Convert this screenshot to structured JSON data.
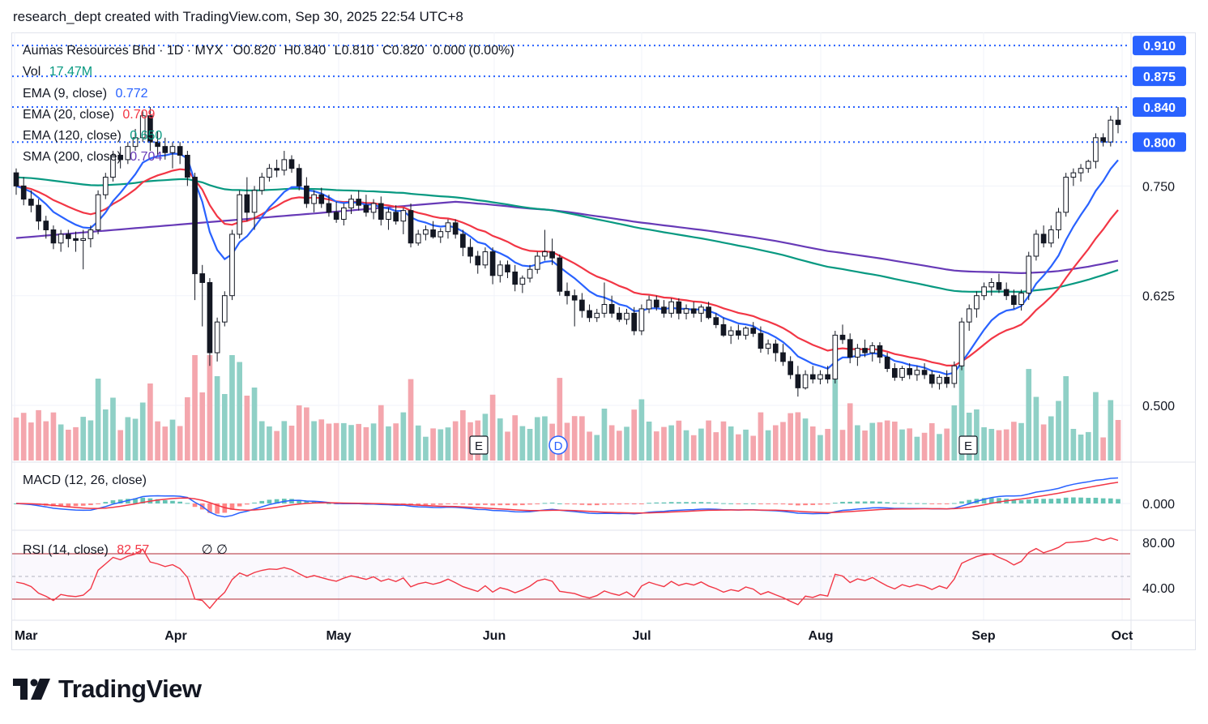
{
  "header": {
    "caption": "research_dept created with TradingView.com, Sep 30, 2025 22:54 UTC+8"
  },
  "legend": {
    "symbol": "Aumas Resources Bhd · 1D · MYX",
    "o_label": "O",
    "o_value": "0.820",
    "h_label": "H",
    "h_value": "0.840",
    "l_label": "L",
    "l_value": "0.810",
    "c_label": "C",
    "c_value": "0.820",
    "change": "0.000 (0.00%)",
    "vol_label": "Vol",
    "vol_value": "17.47M",
    "ema9_label": "EMA (9, close)",
    "ema9_value": "0.772",
    "ema20_label": "EMA (20, close)",
    "ema20_value": "0.709",
    "ema120_label": "EMA (120, close)",
    "ema120_value": "0.650",
    "sma200_label": "SMA (200, close)",
    "sma200_value": "0.704",
    "macd_label": "MACD (12, 26, close)",
    "rsi_label": "RSI (14, close)",
    "rsi_value": "82.57",
    "rsi_extra": "∅ ∅"
  },
  "price_tags": [
    {
      "value": "0.910",
      "color": "#2962ff"
    },
    {
      "value": "0.875",
      "color": "#2962ff"
    },
    {
      "value": "0.840",
      "color": "#2962ff"
    },
    {
      "value": "0.800",
      "color": "#2962ff"
    }
  ],
  "event_markers": [
    {
      "label": "E",
      "month": "May",
      "day": 30
    },
    {
      "label": "D",
      "month": "Jun",
      "day": 17
    },
    {
      "label": "E",
      "month": "Aug",
      "day": 28
    }
  ],
  "brand": {
    "name": "TradingView"
  },
  "colors": {
    "up": "#ffffff",
    "down": "#131722",
    "ema9": "#2962ff",
    "ema20": "#f23645",
    "ema120": "#089981",
    "sma200": "#673ab7",
    "vol_up": "#8fd0c6",
    "vol_down": "#f4a6ad",
    "macd_line": "#2962ff",
    "signal_line": "#f23645",
    "rsi_line": "#f23645",
    "dotted": "#2962ff"
  },
  "chart_data": {
    "type": "candlestick",
    "symbol": "Aumas Resources Bhd",
    "timeframe": "1D",
    "x_months": [
      "Mar",
      "Apr",
      "May",
      "Jun",
      "Jul",
      "Aug",
      "Sep",
      "Oct"
    ],
    "price_ticks": [
      "0.500",
      "0.625",
      "0.750"
    ],
    "price_range": [
      0.46,
      0.92
    ],
    "reference_lines": [
      0.91,
      0.875,
      0.84,
      0.8
    ],
    "macd_ticks": [
      "0.000"
    ],
    "rsi_ticks": [
      "80.00",
      "40.00"
    ],
    "rsi_bands": [
      70,
      50,
      30
    ],
    "candles_ohlc": [
      [
        0.765,
        0.77,
        0.74,
        0.75
      ],
      [
        0.75,
        0.76,
        0.728,
        0.735
      ],
      [
        0.735,
        0.745,
        0.72,
        0.728
      ],
      [
        0.728,
        0.735,
        0.7,
        0.71
      ],
      [
        0.71,
        0.716,
        0.69,
        0.7
      ],
      [
        0.7,
        0.705,
        0.678,
        0.685
      ],
      [
        0.685,
        0.7,
        0.675,
        0.695
      ],
      [
        0.695,
        0.7,
        0.68,
        0.69
      ],
      [
        0.69,
        0.698,
        0.675,
        0.688
      ],
      [
        0.688,
        0.7,
        0.655,
        0.69
      ],
      [
        0.69,
        0.705,
        0.68,
        0.7
      ],
      [
        0.7,
        0.745,
        0.695,
        0.74
      ],
      [
        0.74,
        0.765,
        0.735,
        0.76
      ],
      [
        0.76,
        0.79,
        0.755,
        0.785
      ],
      [
        0.785,
        0.795,
        0.77,
        0.78
      ],
      [
        0.78,
        0.8,
        0.775,
        0.795
      ],
      [
        0.795,
        0.815,
        0.79,
        0.805
      ],
      [
        0.805,
        0.835,
        0.8,
        0.83
      ],
      [
        0.83,
        0.84,
        0.79,
        0.8
      ],
      [
        0.8,
        0.812,
        0.785,
        0.795
      ],
      [
        0.795,
        0.805,
        0.78,
        0.788
      ],
      [
        0.788,
        0.8,
        0.77,
        0.795
      ],
      [
        0.795,
        0.8,
        0.775,
        0.785
      ],
      [
        0.785,
        0.79,
        0.75,
        0.76
      ],
      [
        0.76,
        0.765,
        0.62,
        0.65
      ],
      [
        0.65,
        0.66,
        0.59,
        0.64
      ],
      [
        0.64,
        0.645,
        0.545,
        0.56
      ],
      [
        0.56,
        0.6,
        0.55,
        0.595
      ],
      [
        0.595,
        0.63,
        0.59,
        0.625
      ],
      [
        0.625,
        0.7,
        0.62,
        0.695
      ],
      [
        0.695,
        0.745,
        0.69,
        0.74
      ],
      [
        0.74,
        0.76,
        0.71,
        0.72
      ],
      [
        0.72,
        0.75,
        0.7,
        0.745
      ],
      [
        0.745,
        0.765,
        0.74,
        0.76
      ],
      [
        0.76,
        0.775,
        0.755,
        0.77
      ],
      [
        0.77,
        0.78,
        0.76,
        0.768
      ],
      [
        0.768,
        0.79,
        0.762,
        0.78
      ],
      [
        0.78,
        0.785,
        0.765,
        0.77
      ],
      [
        0.77,
        0.775,
        0.745,
        0.75
      ],
      [
        0.75,
        0.76,
        0.725,
        0.73
      ],
      [
        0.73,
        0.745,
        0.72,
        0.74
      ],
      [
        0.74,
        0.748,
        0.725,
        0.73
      ],
      [
        0.73,
        0.74,
        0.715,
        0.72
      ],
      [
        0.72,
        0.732,
        0.708,
        0.712
      ],
      [
        0.712,
        0.73,
        0.705,
        0.725
      ],
      [
        0.725,
        0.74,
        0.718,
        0.735
      ],
      [
        0.735,
        0.745,
        0.722,
        0.728
      ],
      [
        0.728,
        0.74,
        0.715,
        0.72
      ],
      [
        0.72,
        0.735,
        0.712,
        0.73
      ],
      [
        0.73,
        0.738,
        0.705,
        0.712
      ],
      [
        0.712,
        0.725,
        0.7,
        0.72
      ],
      [
        0.72,
        0.728,
        0.706,
        0.71
      ],
      [
        0.71,
        0.725,
        0.695,
        0.722
      ],
      [
        0.722,
        0.73,
        0.68,
        0.685
      ],
      [
        0.685,
        0.7,
        0.682,
        0.695
      ],
      [
        0.695,
        0.705,
        0.688,
        0.7
      ],
      [
        0.7,
        0.71,
        0.69,
        0.692
      ],
      [
        0.692,
        0.702,
        0.685,
        0.698
      ],
      [
        0.698,
        0.712,
        0.69,
        0.708
      ],
      [
        0.708,
        0.712,
        0.69,
        0.695
      ],
      [
        0.695,
        0.7,
        0.67,
        0.68
      ],
      [
        0.68,
        0.69,
        0.662,
        0.67
      ],
      [
        0.67,
        0.676,
        0.65,
        0.66
      ],
      [
        0.66,
        0.68,
        0.656,
        0.675
      ],
      [
        0.675,
        0.68,
        0.638,
        0.648
      ],
      [
        0.648,
        0.665,
        0.64,
        0.66
      ],
      [
        0.66,
        0.665,
        0.645,
        0.652
      ],
      [
        0.652,
        0.66,
        0.63,
        0.638
      ],
      [
        0.638,
        0.648,
        0.628,
        0.645
      ],
      [
        0.645,
        0.66,
        0.64,
        0.655
      ],
      [
        0.655,
        0.675,
        0.65,
        0.67
      ],
      [
        0.67,
        0.7,
        0.665,
        0.675
      ],
      [
        0.675,
        0.69,
        0.66,
        0.668
      ],
      [
        0.668,
        0.672,
        0.625,
        0.63
      ],
      [
        0.63,
        0.64,
        0.615,
        0.625
      ],
      [
        0.625,
        0.632,
        0.59,
        0.62
      ],
      [
        0.62,
        0.628,
        0.6,
        0.608
      ],
      [
        0.608,
        0.615,
        0.595,
        0.6
      ],
      [
        0.6,
        0.61,
        0.595,
        0.605
      ],
      [
        0.605,
        0.64,
        0.6,
        0.615
      ],
      [
        0.615,
        0.625,
        0.6,
        0.605
      ],
      [
        0.605,
        0.612,
        0.595,
        0.598
      ],
      [
        0.598,
        0.61,
        0.592,
        0.605
      ],
      [
        0.605,
        0.612,
        0.58,
        0.585
      ],
      [
        0.585,
        0.615,
        0.58,
        0.61
      ],
      [
        0.61,
        0.625,
        0.605,
        0.62
      ],
      [
        0.62,
        0.625,
        0.608,
        0.612
      ],
      [
        0.612,
        0.62,
        0.6,
        0.605
      ],
      [
        0.605,
        0.622,
        0.6,
        0.618
      ],
      [
        0.618,
        0.622,
        0.598,
        0.605
      ],
      [
        0.605,
        0.615,
        0.598,
        0.61
      ],
      [
        0.61,
        0.618,
        0.6,
        0.605
      ],
      [
        0.605,
        0.615,
        0.595,
        0.612
      ],
      [
        0.612,
        0.618,
        0.598,
        0.6
      ],
      [
        0.6,
        0.605,
        0.588,
        0.592
      ],
      [
        0.592,
        0.6,
        0.578,
        0.58
      ],
      [
        0.58,
        0.59,
        0.57,
        0.585
      ],
      [
        0.585,
        0.592,
        0.575,
        0.58
      ],
      [
        0.58,
        0.59,
        0.575,
        0.588
      ],
      [
        0.588,
        0.595,
        0.578,
        0.582
      ],
      [
        0.582,
        0.59,
        0.56,
        0.565
      ],
      [
        0.565,
        0.575,
        0.558,
        0.57
      ],
      [
        0.57,
        0.575,
        0.55,
        0.56
      ],
      [
        0.56,
        0.57,
        0.545,
        0.55
      ],
      [
        0.55,
        0.556,
        0.53,
        0.535
      ],
      [
        0.535,
        0.545,
        0.51,
        0.52
      ],
      [
        0.52,
        0.54,
        0.518,
        0.535
      ],
      [
        0.535,
        0.545,
        0.525,
        0.53
      ],
      [
        0.53,
        0.54,
        0.524,
        0.535
      ],
      [
        0.535,
        0.545,
        0.525,
        0.53
      ],
      [
        0.53,
        0.585,
        0.525,
        0.58
      ],
      [
        0.58,
        0.592,
        0.57,
        0.575
      ],
      [
        0.575,
        0.582,
        0.548,
        0.555
      ],
      [
        0.555,
        0.57,
        0.545,
        0.565
      ],
      [
        0.565,
        0.575,
        0.555,
        0.56
      ],
      [
        0.56,
        0.572,
        0.55,
        0.568
      ],
      [
        0.568,
        0.572,
        0.548,
        0.555
      ],
      [
        0.555,
        0.56,
        0.538,
        0.542
      ],
      [
        0.542,
        0.548,
        0.528,
        0.532
      ],
      [
        0.532,
        0.545,
        0.528,
        0.542
      ],
      [
        0.542,
        0.548,
        0.53,
        0.535
      ],
      [
        0.535,
        0.545,
        0.528,
        0.54
      ],
      [
        0.54,
        0.548,
        0.53,
        0.535
      ],
      [
        0.535,
        0.54,
        0.52,
        0.525
      ],
      [
        0.525,
        0.535,
        0.518,
        0.532
      ],
      [
        0.532,
        0.54,
        0.52,
        0.525
      ],
      [
        0.525,
        0.55,
        0.52,
        0.545
      ],
      [
        0.545,
        0.6,
        0.54,
        0.595
      ],
      [
        0.595,
        0.615,
        0.585,
        0.61
      ],
      [
        0.61,
        0.63,
        0.6,
        0.625
      ],
      [
        0.625,
        0.64,
        0.62,
        0.635
      ],
      [
        0.635,
        0.645,
        0.625,
        0.64
      ],
      [
        0.64,
        0.65,
        0.628,
        0.632
      ],
      [
        0.632,
        0.64,
        0.62,
        0.625
      ],
      [
        0.625,
        0.632,
        0.61,
        0.615
      ],
      [
        0.615,
        0.632,
        0.608,
        0.628
      ],
      [
        0.628,
        0.675,
        0.62,
        0.67
      ],
      [
        0.67,
        0.7,
        0.665,
        0.695
      ],
      [
        0.695,
        0.705,
        0.68,
        0.685
      ],
      [
        0.685,
        0.705,
        0.68,
        0.7
      ],
      [
        0.7,
        0.725,
        0.69,
        0.72
      ],
      [
        0.72,
        0.765,
        0.715,
        0.76
      ],
      [
        0.76,
        0.77,
        0.75,
        0.765
      ],
      [
        0.765,
        0.775,
        0.755,
        0.77
      ],
      [
        0.77,
        0.78,
        0.765,
        0.778
      ],
      [
        0.778,
        0.81,
        0.77,
        0.805
      ],
      [
        0.805,
        0.81,
        0.795,
        0.8
      ],
      [
        0.8,
        0.83,
        0.795,
        0.825
      ],
      [
        0.825,
        0.84,
        0.81,
        0.82
      ]
    ]
  }
}
